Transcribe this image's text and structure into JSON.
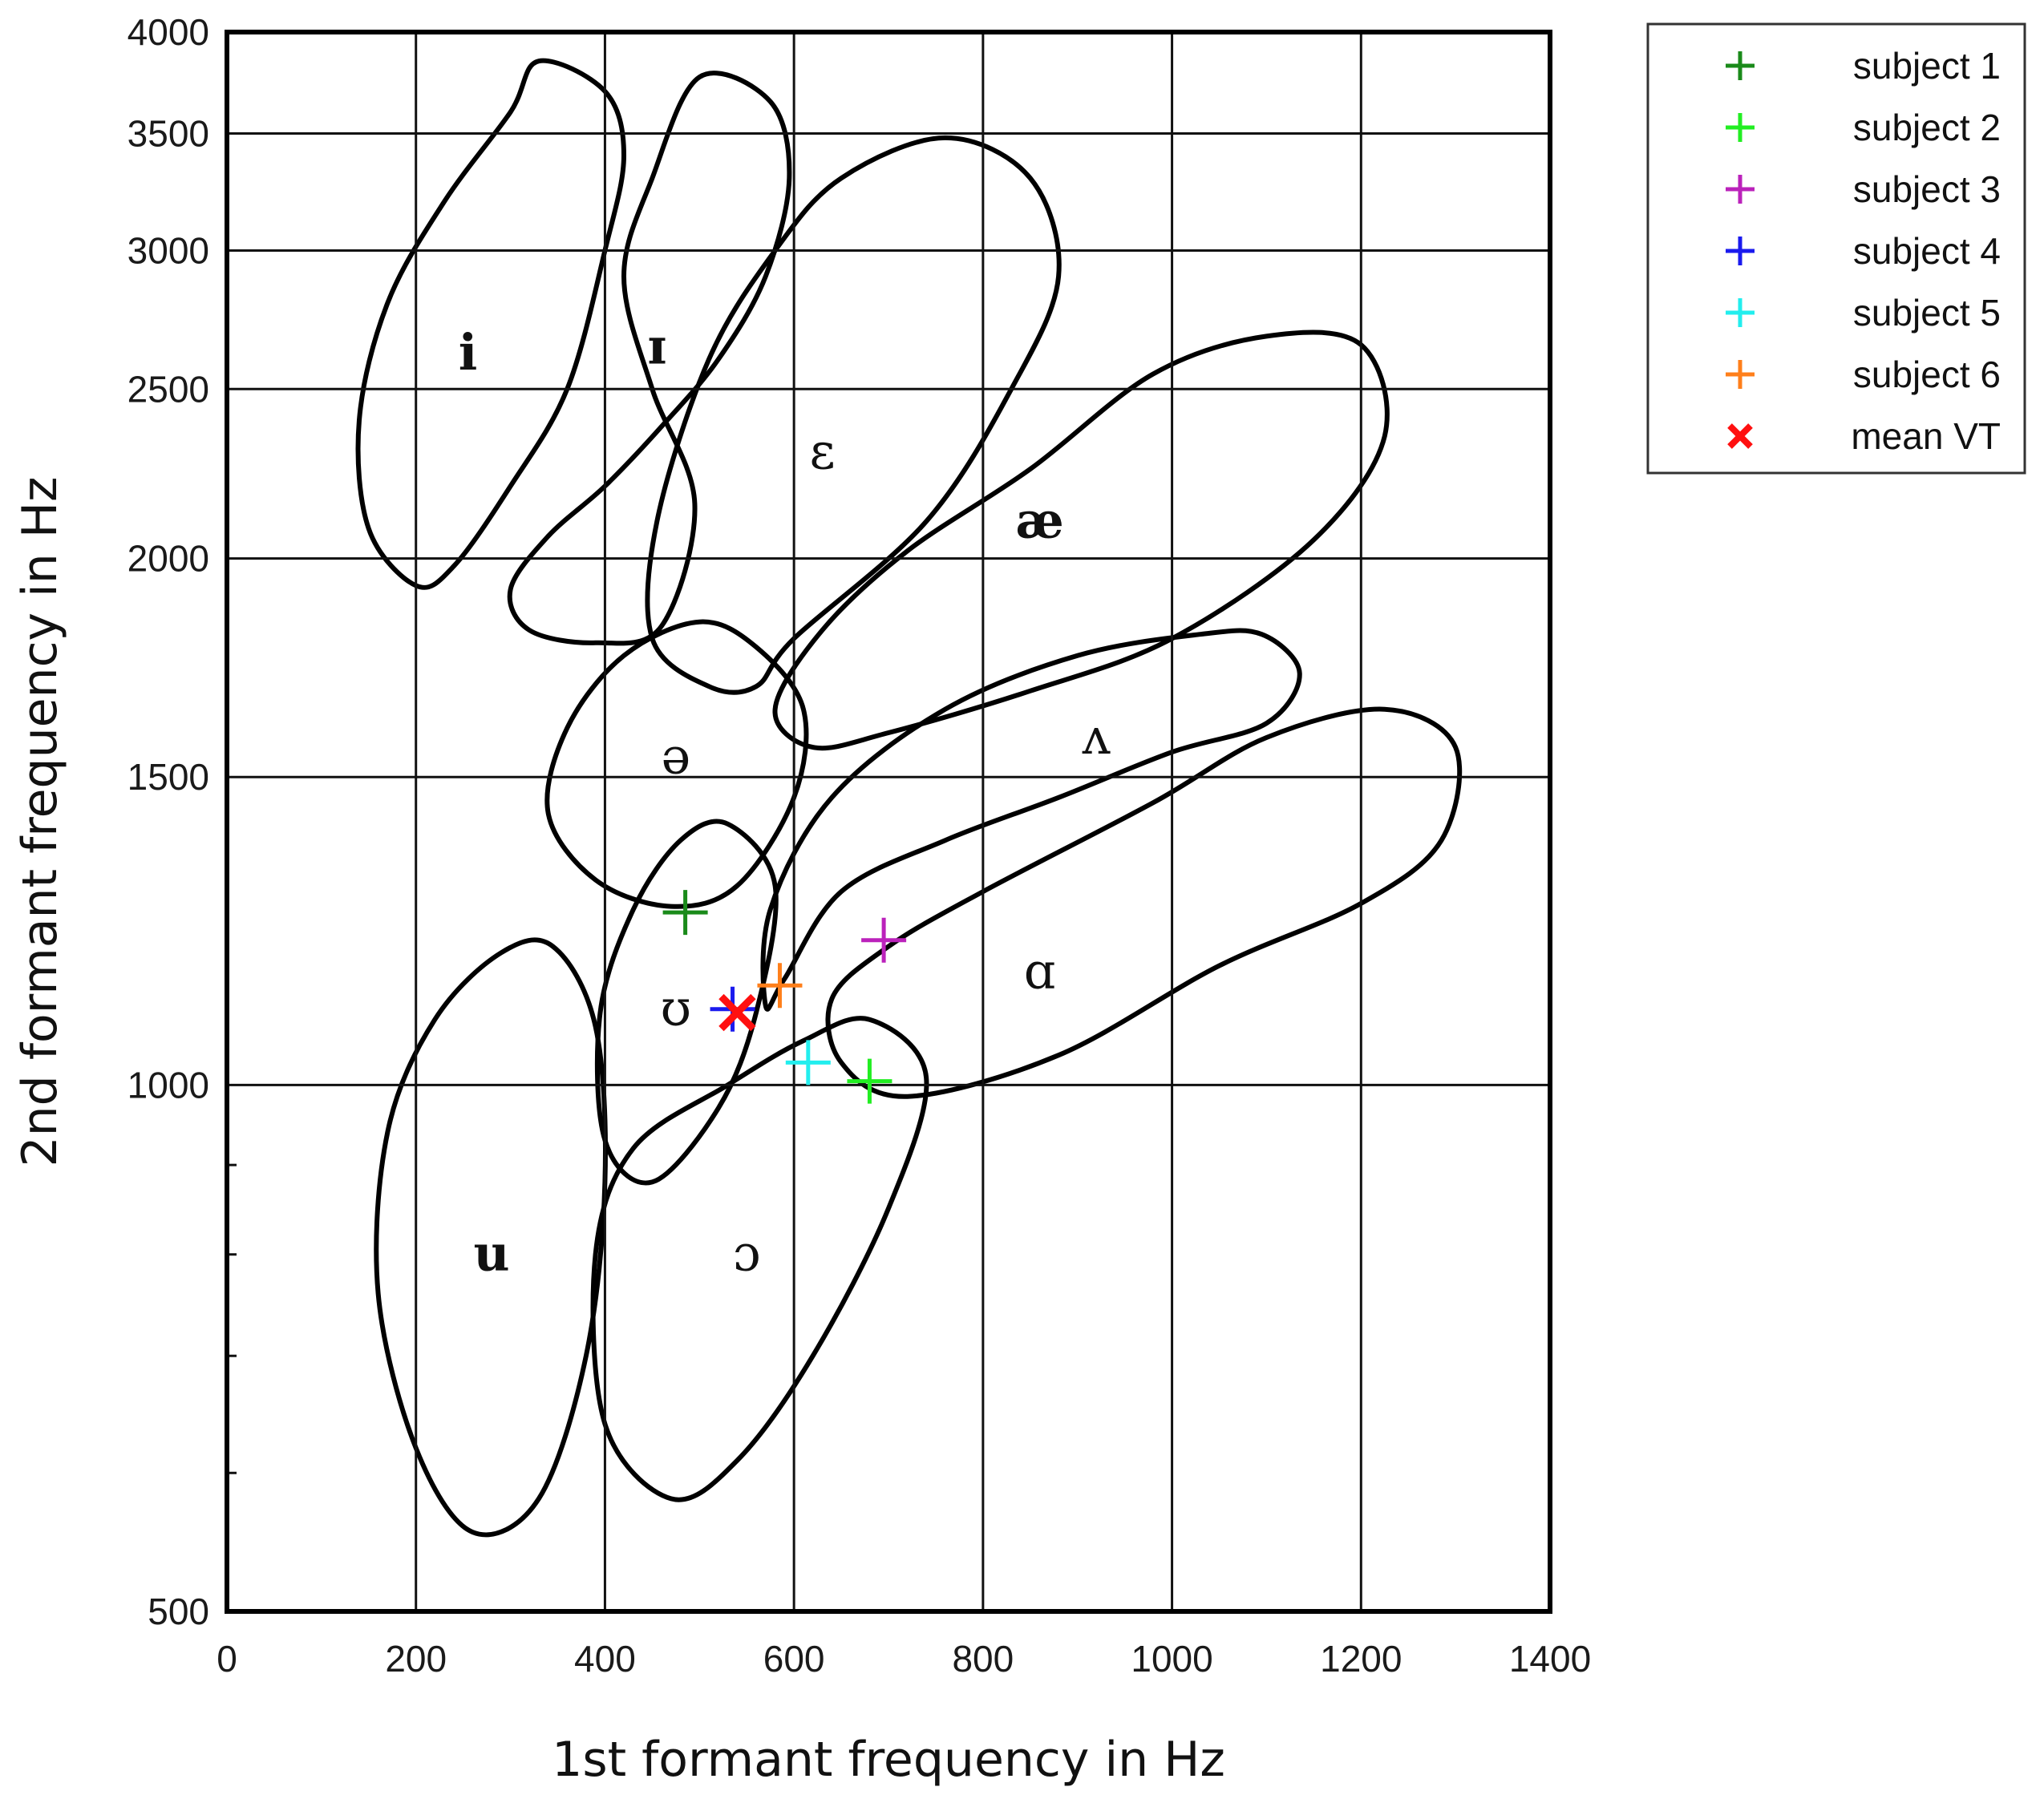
{
  "chart_data": {
    "type": "scatter",
    "xlabel": "1st formant frequency in Hz",
    "ylabel": "2nd formant frequency in Hz",
    "xlim": [
      0,
      1400
    ],
    "ylim": [
      500,
      4000
    ],
    "y_scale": "log",
    "grid": true,
    "legend_position": "outside-top-right",
    "x_ticks": [
      0,
      200,
      400,
      600,
      800,
      1000,
      1200,
      1400
    ],
    "x_tick_labels": [
      "0",
      "200",
      "400",
      "600",
      "800",
      "1000",
      "1200",
      "1400"
    ],
    "y_ticks": [
      500,
      1000,
      1500,
      2000,
      2500,
      3000,
      3500,
      4000
    ],
    "y_tick_labels": [
      "500",
      "1000",
      "1500",
      "2000",
      "2500",
      "3000",
      "3500",
      "4000"
    ],
    "series": [
      {
        "name": "subject 1",
        "marker": "+",
        "color": "#1a8a1a",
        "x": [
          485
        ],
        "y": [
          1255
        ]
      },
      {
        "name": "subject 2",
        "marker": "+",
        "color": "#22ee22",
        "x": [
          680
        ],
        "y": [
          1005
        ]
      },
      {
        "name": "subject 3",
        "marker": "+",
        "color": "#bb22bb",
        "x": [
          695
        ],
        "y": [
          1210
        ]
      },
      {
        "name": "subject 4",
        "marker": "+",
        "color": "#1a1aee",
        "x": [
          535
        ],
        "y": [
          1105
        ]
      },
      {
        "name": "subject 5",
        "marker": "+",
        "color": "#22eeee",
        "x": [
          615
        ],
        "y": [
          1030
        ]
      },
      {
        "name": "subject 6",
        "marker": "+",
        "color": "#ff7f1a",
        "x": [
          585
        ],
        "y": [
          1140
        ]
      },
      {
        "name": "mean VT",
        "marker": "x",
        "color": "#ff1010",
        "x": [
          540
        ],
        "y": [
          1100
        ]
      }
    ],
    "vowel_regions": [
      {
        "symbol": "i",
        "bold": true,
        "x": 255,
        "y": 2620,
        "outline": [
          [
            330,
            3850
          ],
          [
            400,
            3700
          ],
          [
            420,
            3400
          ],
          [
            400,
            3000
          ],
          [
            360,
            2500
          ],
          [
            300,
            2200
          ],
          [
            240,
            1980
          ],
          [
            200,
            1930
          ],
          [
            150,
            2080
          ],
          [
            140,
            2400
          ],
          [
            170,
            2800
          ],
          [
            230,
            3200
          ],
          [
            300,
            3600
          ]
        ]
      },
      {
        "symbol": "ɪ",
        "bold": true,
        "x": 455,
        "y": 2640,
        "outline": [
          [
            500,
            3770
          ],
          [
            575,
            3650
          ],
          [
            595,
            3300
          ],
          [
            570,
            2900
          ],
          [
            520,
            2600
          ],
          [
            460,
            2380
          ],
          [
            400,
            2200
          ],
          [
            340,
            2060
          ],
          [
            300,
            1920
          ],
          [
            320,
            1820
          ],
          [
            390,
            1790
          ],
          [
            460,
            1830
          ],
          [
            495,
            2150
          ],
          [
            450,
            2500
          ],
          [
            420,
            2900
          ],
          [
            450,
            3300
          ]
        ]
      },
      {
        "symbol": "ɛ",
        "bold": false,
        "x": 630,
        "y": 2300,
        "outline": [
          [
            760,
            3480
          ],
          [
            850,
            3300
          ],
          [
            880,
            2900
          ],
          [
            830,
            2500
          ],
          [
            740,
            2100
          ],
          [
            600,
            1800
          ],
          [
            560,
            1690
          ],
          [
            510,
            1690
          ],
          [
            450,
            1800
          ],
          [
            455,
            2100
          ],
          [
            510,
            2600
          ],
          [
            580,
            3000
          ],
          [
            650,
            3300
          ]
        ]
      },
      {
        "symbol": "æ",
        "bold": true,
        "x": 860,
        "y": 2100,
        "outline": [
          [
            1100,
            2680
          ],
          [
            1200,
            2650
          ],
          [
            1225,
            2350
          ],
          [
            1150,
            2050
          ],
          [
            1000,
            1800
          ],
          [
            850,
            1680
          ],
          [
            700,
            1590
          ],
          [
            620,
            1560
          ],
          [
            580,
            1640
          ],
          [
            630,
            1820
          ],
          [
            720,
            2020
          ],
          [
            850,
            2250
          ],
          [
            980,
            2550
          ]
        ]
      },
      {
        "symbol": "ʌ",
        "bold": false,
        "x": 920,
        "y": 1580,
        "outline": [
          [
            1095,
            1810
          ],
          [
            1135,
            1720
          ],
          [
            1100,
            1610
          ],
          [
            1000,
            1550
          ],
          [
            880,
            1460
          ],
          [
            760,
            1380
          ],
          [
            650,
            1290
          ],
          [
            590,
            1150
          ],
          [
            570,
            1110
          ],
          [
            575,
            1260
          ],
          [
            640,
            1460
          ],
          [
            760,
            1640
          ],
          [
            900,
            1760
          ],
          [
            1030,
            1810
          ]
        ]
      },
      {
        "symbol": "ə",
        "bold": false,
        "x": 475,
        "y": 1540,
        "outline": [
          [
            500,
            1840
          ],
          [
            560,
            1780
          ],
          [
            610,
            1640
          ],
          [
            600,
            1460
          ],
          [
            540,
            1300
          ],
          [
            470,
            1265
          ],
          [
            390,
            1310
          ],
          [
            340,
            1430
          ],
          [
            360,
            1600
          ],
          [
            420,
            1760
          ]
        ]
      },
      {
        "symbol": "ɑ",
        "bold": false,
        "x": 860,
        "y": 1160,
        "outline": [
          [
            1225,
            1640
          ],
          [
            1300,
            1560
          ],
          [
            1285,
            1380
          ],
          [
            1200,
            1270
          ],
          [
            1050,
            1170
          ],
          [
            880,
            1040
          ],
          [
            720,
            985
          ],
          [
            650,
            1030
          ],
          [
            640,
            1120
          ],
          [
            700,
            1200
          ],
          [
            800,
            1290
          ],
          [
            980,
            1450
          ],
          [
            1100,
            1580
          ]
        ]
      },
      {
        "symbol": "ʊ",
        "bold": false,
        "x": 475,
        "y": 1105,
        "outline": [
          [
            530,
            1410
          ],
          [
            580,
            1300
          ],
          [
            560,
            1100
          ],
          [
            520,
            970
          ],
          [
            450,
            880
          ],
          [
            400,
            930
          ],
          [
            395,
            1100
          ],
          [
            430,
            1260
          ],
          [
            480,
            1380
          ]
        ]
      },
      {
        "symbol": "u",
        "bold": true,
        "x": 280,
        "y": 800,
        "outline": [
          [
            345,
            1200
          ],
          [
            390,
            1080
          ],
          [
            400,
            880
          ],
          [
            380,
            700
          ],
          [
            330,
            580
          ],
          [
            260,
            555
          ],
          [
            200,
            620
          ],
          [
            160,
            760
          ],
          [
            170,
            940
          ],
          [
            220,
            1090
          ],
          [
            290,
            1190
          ]
        ]
      },
      {
        "symbol": "ɔ",
        "bold": false,
        "x": 550,
        "y": 800,
        "outline": [
          [
            680,
            1090
          ],
          [
            740,
            1010
          ],
          [
            700,
            850
          ],
          [
            620,
            700
          ],
          [
            540,
            610
          ],
          [
            470,
            580
          ],
          [
            400,
            640
          ],
          [
            390,
            800
          ],
          [
            430,
            920
          ],
          [
            530,
            1000
          ],
          [
            610,
            1060
          ]
        ]
      }
    ]
  }
}
